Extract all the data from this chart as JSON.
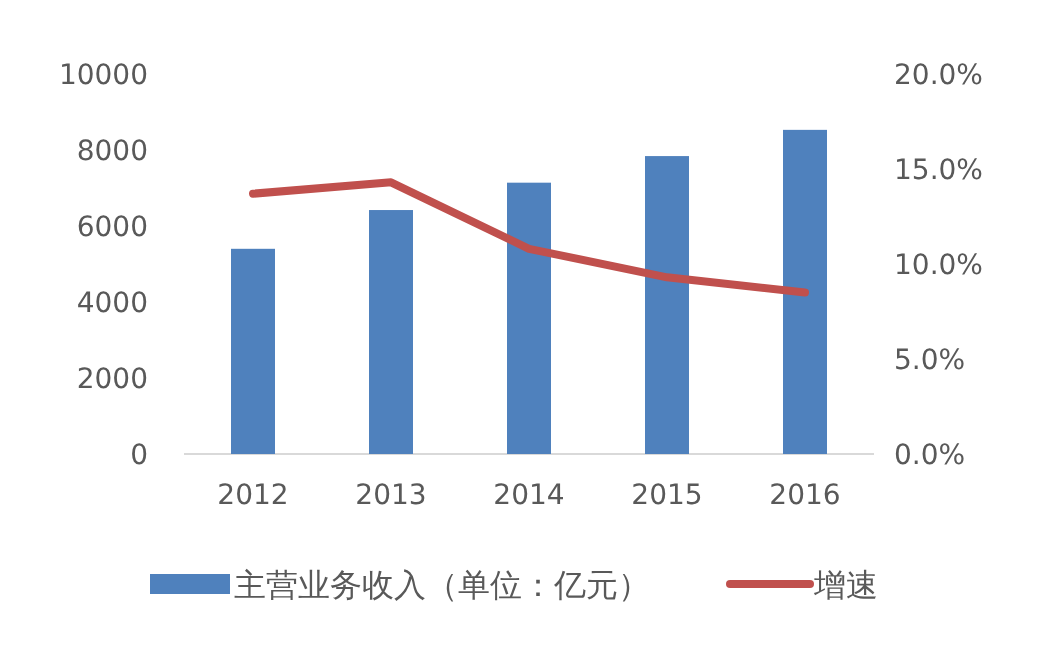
{
  "chart_data": {
    "type": "bar",
    "categories": [
      "2012",
      "2013",
      "2014",
      "2015",
      "2016"
    ],
    "series": [
      {
        "name": "主营业务收入（单位：亿元）",
        "color": "#4f81bd",
        "values": [
          5400,
          6420,
          7140,
          7840,
          8530
        ]
      },
      {
        "name": "增速",
        "type": "line",
        "axis": "y2",
        "color": "#c0504d",
        "values": [
          13.7,
          14.3,
          10.8,
          9.3,
          8.5
        ]
      }
    ],
    "ylim": [
      0,
      10000
    ],
    "yticks": [
      0,
      2000,
      4000,
      6000,
      8000,
      10000
    ],
    "y2lim": [
      0,
      20
    ],
    "y2ticks": [
      {
        "value": 0,
        "label": "0.0%"
      },
      {
        "value": 5,
        "label": "5.0%"
      },
      {
        "value": 10,
        "label": "10.0%"
      },
      {
        "value": 15,
        "label": "15.0%"
      },
      {
        "value": 20,
        "label": "20.0%"
      }
    ],
    "legend": "bottom"
  }
}
